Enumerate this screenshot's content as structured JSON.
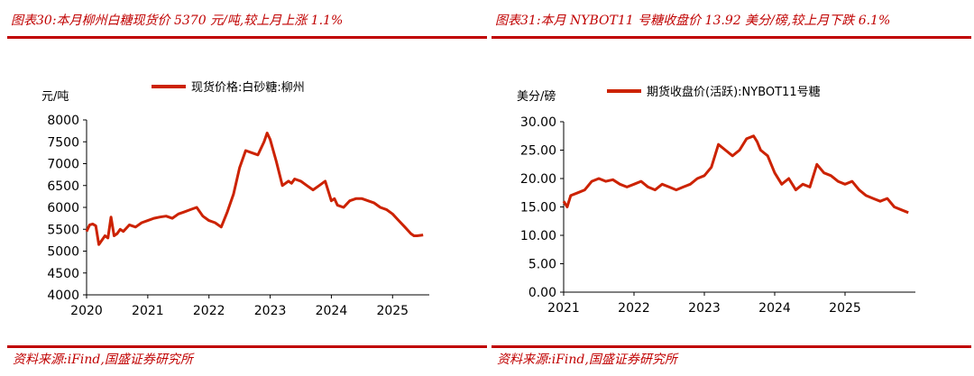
{
  "panels": [
    {
      "title": "图表30:本月柳州白糖现货价 5370 元/吨,较上月上涨 1.1%",
      "source": "资料来源:iFind,国盛证券研究所"
    },
    {
      "title": "图表31:本月 NYBOT11 号糖收盘价 13.92 美分/磅,较上月下跌 6.1%",
      "source": "资料来源:iFind,国盛证券研究所"
    }
  ],
  "chart_data": [
    {
      "type": "line",
      "ylabel": "元/吨",
      "ylim": [
        4000,
        8000
      ],
      "yticks": [
        "4000",
        "4500",
        "5000",
        "5500",
        "6000",
        "6500",
        "7000",
        "7500",
        "8000"
      ],
      "xlim": [
        2020.0,
        2025.6
      ],
      "xticks": [
        "2020",
        "2021",
        "2022",
        "2023",
        "2024",
        "2025"
      ],
      "color": "#cc2200",
      "grid": false,
      "legend": "top",
      "series": [
        {
          "name": "现货价格:白砂糖:柳州",
          "x": [
            2020.0,
            2020.05,
            2020.1,
            2020.15,
            2020.2,
            2020.25,
            2020.3,
            2020.35,
            2020.4,
            2020.45,
            2020.5,
            2020.55,
            2020.6,
            2020.7,
            2020.8,
            2020.9,
            2021.0,
            2021.1,
            2021.2,
            2021.3,
            2021.4,
            2021.5,
            2021.6,
            2021.7,
            2021.8,
            2021.9,
            2022.0,
            2022.1,
            2022.2,
            2022.3,
            2022.4,
            2022.5,
            2022.6,
            2022.7,
            2022.8,
            2022.9,
            2022.95,
            2023.0,
            2023.05,
            2023.1,
            2023.2,
            2023.3,
            2023.35,
            2023.4,
            2023.5,
            2023.6,
            2023.7,
            2023.8,
            2023.9,
            2024.0,
            2024.05,
            2024.1,
            2024.2,
            2024.3,
            2024.4,
            2024.5,
            2024.6,
            2024.7,
            2024.8,
            2024.9,
            2025.0,
            2025.1,
            2025.2,
            2025.3,
            2025.35,
            2025.4,
            2025.5
          ],
          "values": [
            5450,
            5600,
            5620,
            5580,
            5150,
            5250,
            5350,
            5300,
            5780,
            5350,
            5400,
            5500,
            5450,
            5600,
            5550,
            5650,
            5700,
            5750,
            5780,
            5800,
            5750,
            5850,
            5900,
            5950,
            6000,
            5800,
            5700,
            5650,
            5550,
            5900,
            6300,
            6900,
            7300,
            7250,
            7200,
            7500,
            7700,
            7550,
            7300,
            7050,
            6500,
            6600,
            6550,
            6650,
            6600,
            6500,
            6400,
            6500,
            6600,
            6150,
            6200,
            6050,
            6000,
            6150,
            6200,
            6200,
            6150,
            6100,
            6000,
            5950,
            5850,
            5700,
            5550,
            5400,
            5350,
            5350,
            5370
          ]
        }
      ]
    },
    {
      "type": "line",
      "ylabel": "美分/磅",
      "ylim": [
        0,
        30
      ],
      "yticks": [
        "0.00",
        "5.00",
        "10.00",
        "15.00",
        "20.00",
        "25.00",
        "30.00"
      ],
      "xlim": [
        2021.0,
        2026.0
      ],
      "xticks": [
        "2021",
        "2022",
        "2023",
        "2024",
        "2025"
      ],
      "color": "#cc2200",
      "grid": false,
      "legend": "top",
      "series": [
        {
          "name": "期货收盘价(活跃):NYBOT11号糖",
          "x": [
            2021.0,
            2021.05,
            2021.1,
            2021.2,
            2021.3,
            2021.4,
            2021.5,
            2021.6,
            2021.7,
            2021.8,
            2021.9,
            2022.0,
            2022.1,
            2022.2,
            2022.3,
            2022.4,
            2022.5,
            2022.6,
            2022.7,
            2022.8,
            2022.9,
            2023.0,
            2023.1,
            2023.2,
            2023.3,
            2023.4,
            2023.5,
            2023.6,
            2023.7,
            2023.75,
            2023.8,
            2023.9,
            2024.0,
            2024.1,
            2024.2,
            2024.3,
            2024.4,
            2024.5,
            2024.6,
            2024.7,
            2024.8,
            2024.9,
            2025.0,
            2025.1,
            2025.2,
            2025.3,
            2025.4,
            2025.5,
            2025.6,
            2025.7,
            2025.8,
            2025.9
          ],
          "values": [
            16.0,
            15.0,
            17.0,
            17.5,
            18.0,
            19.5,
            20.0,
            19.5,
            19.8,
            19.0,
            18.5,
            19.0,
            19.5,
            18.5,
            18.0,
            19.0,
            18.5,
            18.0,
            18.5,
            19.0,
            20.0,
            20.5,
            22.0,
            26.0,
            25.0,
            24.0,
            25.0,
            27.0,
            27.5,
            26.5,
            25.0,
            24.0,
            21.0,
            19.0,
            20.0,
            18.0,
            19.0,
            18.5,
            22.5,
            21.0,
            20.5,
            19.5,
            19.0,
            19.5,
            18.0,
            17.0,
            16.5,
            16.0,
            16.5,
            15.0,
            14.5,
            14.0
          ]
        }
      ]
    }
  ]
}
